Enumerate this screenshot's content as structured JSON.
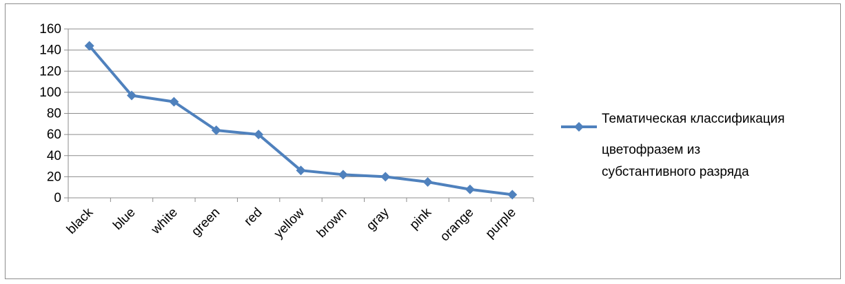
{
  "chart_data": {
    "type": "line",
    "title": "",
    "xlabel": "",
    "ylabel": "",
    "categories": [
      "black",
      "blue",
      "white",
      "green",
      "red",
      "yellow",
      "brown",
      "gray",
      "pink",
      "orange",
      "purple"
    ],
    "series": [
      {
        "name": "Тематическая классификация цветофразем из субстантивного разряда",
        "values": [
          144,
          97,
          91,
          64,
          60,
          26,
          22,
          20,
          15,
          8,
          3
        ],
        "color": "#4f81bd",
        "marker": "diamond"
      }
    ],
    "ylim": [
      0,
      160
    ],
    "yticks": [
      "0",
      "20",
      "40",
      "60",
      "80",
      "100",
      "120",
      "140",
      "160"
    ],
    "grid": "horizontal",
    "legend": {
      "position": "right",
      "lines": [
        "Тематическая классификация",
        "цветофразем из",
        "субстантивного разряда"
      ]
    }
  }
}
